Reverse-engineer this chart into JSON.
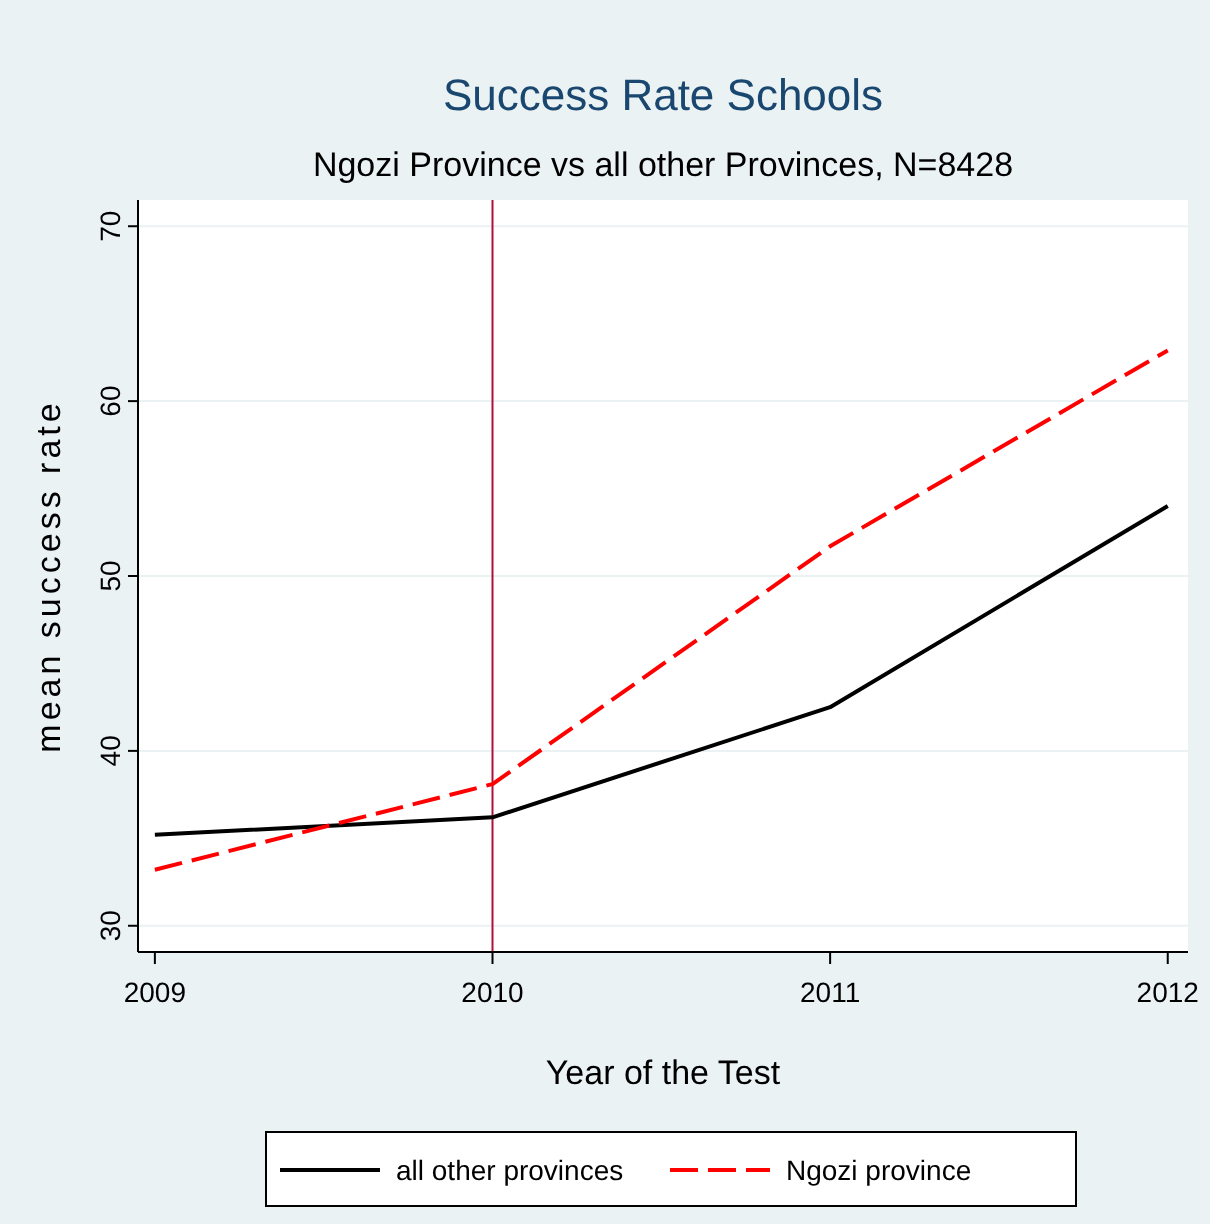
{
  "chart_data": {
    "type": "line",
    "title": "Success Rate Schools",
    "subtitle": "Ngozi Province vs all other Provinces, N=8428",
    "xlabel": "Year of the Test",
    "ylabel": "mean success rate",
    "x": [
      2009,
      2010,
      2011,
      2012
    ],
    "xlim": [
      2008.95,
      2012.06
    ],
    "xticks": [
      2009,
      2010,
      2011,
      2012
    ],
    "ylim": [
      28.5,
      71.5
    ],
    "yticks": [
      30,
      40,
      50,
      60,
      70
    ],
    "grid": "y",
    "legend": "bottom",
    "marker": "none",
    "series": [
      {
        "name": "all other provinces",
        "color": "#000000",
        "line_style": "solid",
        "values": [
          35.2,
          36.2,
          42.5,
          54.0
        ]
      },
      {
        "name": "Ngozi province",
        "color": "#ff0000",
        "line_style": "dashed",
        "values": [
          33.2,
          38.1,
          51.7,
          62.9
        ]
      }
    ],
    "ref_lines": [
      {
        "axis": "x",
        "value": 2010,
        "color": "#b0103a"
      }
    ]
  }
}
